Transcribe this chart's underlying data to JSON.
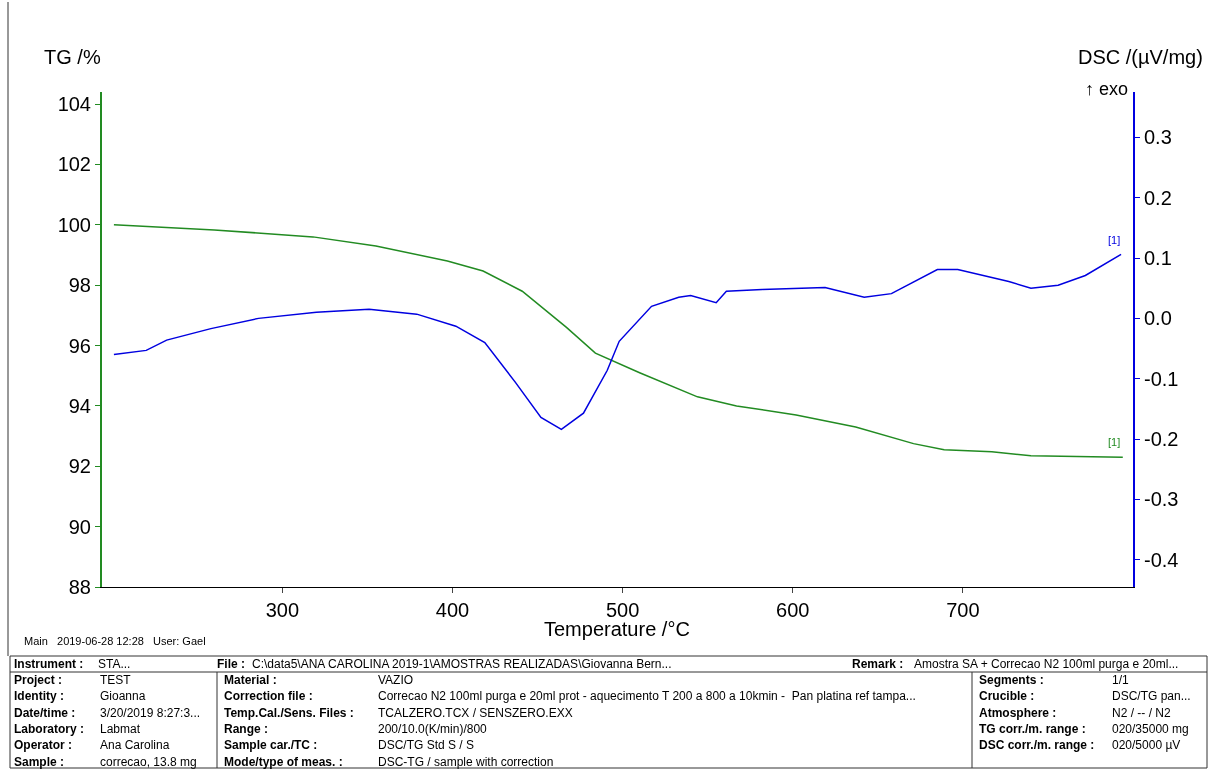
{
  "chart_data": {
    "type": "line",
    "xlabel": "Temperature /°C",
    "ylabel": "TG /%",
    "y2label": "DSC /(µV/mg)",
    "xlim": [
      194,
      800
    ],
    "xticks": [
      300,
      400,
      500,
      600,
      700
    ],
    "ylim": [
      88,
      104.4
    ],
    "yticks": [
      88,
      90,
      92,
      94,
      96,
      98,
      100,
      102,
      104
    ],
    "y2lim": [
      -0.445,
      0.375
    ],
    "y2ticks": [
      -0.4,
      -0.3,
      -0.2,
      -0.1,
      {
        "value": 0,
        "label": "0.0"
      },
      0.1,
      0.2,
      0.3
    ],
    "marker": "none",
    "line_style": "solid",
    "series": [
      {
        "color": "#228b22",
        "x": [
          201,
          260,
          318,
          355,
          397,
          418,
          441,
          467,
          484,
          510,
          544,
          567,
          602,
          637,
          671,
          689,
          717,
          740,
          794
        ],
        "values": [
          100.0,
          99.83,
          99.6,
          99.3,
          98.8,
          98.47,
          97.8,
          96.6,
          95.75,
          95.1,
          94.3,
          94.0,
          93.7,
          93.3,
          92.75,
          92.55,
          92.48,
          92.35,
          92.3
        ]
      },
      {
        "color": "#0000e0",
        "axis": "y2",
        "x": [
          201,
          220,
          232,
          258,
          286,
          320,
          351,
          379,
          402,
          419,
          437,
          452,
          464,
          477,
          491,
          498,
          517,
          533,
          540,
          555,
          561,
          582,
          619,
          642,
          658,
          685,
          697,
          727,
          740,
          756,
          772,
          793
        ],
        "values": [
          -0.06,
          -0.053,
          -0.036,
          -0.017,
          0.0,
          0.01,
          0.015,
          0.007,
          -0.013,
          -0.04,
          -0.106,
          -0.164,
          -0.184,
          -0.157,
          -0.086,
          -0.038,
          0.02,
          0.035,
          0.038,
          0.026,
          0.045,
          0.048,
          0.051,
          0.035,
          0.041,
          0.081,
          0.081,
          0.061,
          0.05,
          0.055,
          0.071,
          0.106
        ]
      }
    ],
    "annotations": [
      "↑ exo",
      "[1]",
      "[1]",
      "Main   2019-06-28 12:28   User: Gael",
      "Instrument :",
      "STA...",
      "File :",
      "C:\\data5\\ANA CAROLINA 2019-1\\AMOSTRAS REALIZADAS\\Giovanna Bern...",
      "Remark :",
      "Amostra SA + Correcao N2 100ml purga e 20ml...",
      "Project :",
      "TEST",
      "Identity :",
      "Gioanna",
      "Date/time :",
      "3/20/2019 8:27:3...",
      "Laboratory :",
      "Labmat",
      "Operator :",
      "Ana Carolina",
      "Sample :",
      "correcao, 13.8 mg",
      "Material :",
      "VAZIO",
      "Correction file :",
      "Correcao N2 100ml purga e 20ml prot - aquecimento T 200 a 800 a 10kmin -  Pan platina ref tampa...",
      "Temp.Cal./Sens. Files :",
      "TCALZERO.TCX / SENSZERO.EXX",
      "Range :",
      "200/10.0(K/min)/800",
      "Sample car./TC :",
      "DSC/TG Std S / S",
      "Mode/type of meas. :",
      "DSC-TG / sample with correction",
      "Segments :",
      "1/1",
      "Crucible :",
      "DSC/TG pan...",
      "Atmosphere :",
      "N2 / -- / N2",
      "TG corr./m. range :",
      "020/35000 mg",
      "DSC corr./m. range :",
      "020/5000 µV"
    ]
  }
}
